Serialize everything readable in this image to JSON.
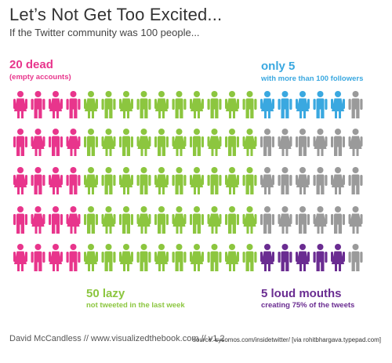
{
  "title": "Let’s Not Get Too Excited...",
  "subtitle": "If the Twitter community was 100 people...",
  "groups": {
    "dead": {
      "count": "20 dead",
      "desc": "(empty accounts)",
      "color": "#e8358c"
    },
    "only5": {
      "count": "only 5",
      "desc": "with more than 100 followers",
      "color": "#3aa8e0"
    },
    "lazy": {
      "count": "50 lazy",
      "desc": "not tweeted in the last week",
      "color": "#8cc63f"
    },
    "loud": {
      "count": "5 loud mouths",
      "desc": "creating 75% of the tweets",
      "color": "#6a2c91"
    }
  },
  "neutral_color": "#9a9a9a",
  "people": {
    "total": 100,
    "rows": 5,
    "columns": 20,
    "grid": [
      [
        "dead",
        "dead",
        "dead",
        "dead",
        "lazy",
        "lazy",
        "lazy",
        "lazy",
        "lazy",
        "lazy",
        "lazy",
        "lazy",
        "lazy",
        "lazy",
        "only5",
        "only5",
        "only5",
        "only5",
        "only5",
        "other"
      ],
      [
        "dead",
        "dead",
        "dead",
        "dead",
        "lazy",
        "lazy",
        "lazy",
        "lazy",
        "lazy",
        "lazy",
        "lazy",
        "lazy",
        "lazy",
        "lazy",
        "other",
        "other",
        "other",
        "other",
        "other",
        "other"
      ],
      [
        "dead",
        "dead",
        "dead",
        "dead",
        "lazy",
        "lazy",
        "lazy",
        "lazy",
        "lazy",
        "lazy",
        "lazy",
        "lazy",
        "lazy",
        "lazy",
        "other",
        "other",
        "other",
        "other",
        "other",
        "other"
      ],
      [
        "dead",
        "dead",
        "dead",
        "dead",
        "lazy",
        "lazy",
        "lazy",
        "lazy",
        "lazy",
        "lazy",
        "lazy",
        "lazy",
        "lazy",
        "lazy",
        "other",
        "other",
        "other",
        "other",
        "other",
        "other"
      ],
      [
        "dead",
        "dead",
        "dead",
        "dead",
        "lazy",
        "lazy",
        "lazy",
        "lazy",
        "lazy",
        "lazy",
        "lazy",
        "lazy",
        "lazy",
        "lazy",
        "loud",
        "loud",
        "loud",
        "loud",
        "loud",
        "other"
      ]
    ]
  },
  "footer": {
    "credit": "David McCandless // www.visualizedthebook.com // v1.2",
    "source": "source: sysomos.com/insidetwitter/ [via rohitbhargava.typepad.com]"
  }
}
